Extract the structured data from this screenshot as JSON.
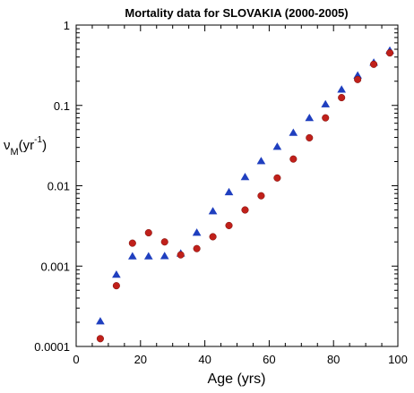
{
  "chart_data": {
    "type": "scatter",
    "title": "Mortality data for SLOVAKIA (2000-2005)",
    "xlabel": "Age (yrs)",
    "ylabel": {
      "symbol": "ν",
      "subscript": "M",
      "unit_open": "(yr",
      "unit_exp": "-1",
      "unit_close": ")"
    },
    "xlim": [
      0,
      100
    ],
    "ylim": [
      0.0001,
      1
    ],
    "yscale": "log",
    "grid": false,
    "xticks": [
      "0",
      "20",
      "40",
      "60",
      "80",
      "100"
    ],
    "xtick_values": [
      0,
      20,
      40,
      60,
      80,
      100
    ],
    "yticks": [
      "0.0001",
      "0.001",
      "0.01",
      "0.1",
      "1"
    ],
    "ytick_values": [
      0.0001,
      0.001,
      0.01,
      0.1,
      1
    ],
    "series": [
      {
        "color": "#1f3fbf",
        "marker": "triangle",
        "x": [
          7.5,
          12.5,
          17.5,
          22.5,
          27.5,
          32.5,
          37.5,
          42.5,
          47.5,
          52.5,
          57.5,
          62.5,
          67.5,
          72.5,
          77.5,
          82.5,
          87.5,
          92.5,
          97.5
        ],
        "values": [
          0.000205,
          0.00078,
          0.00132,
          0.00132,
          0.00133,
          0.00143,
          0.0026,
          0.0048,
          0.0083,
          0.0128,
          0.0202,
          0.0305,
          0.0455,
          0.0695,
          0.103,
          0.157,
          0.235,
          0.34,
          0.48
        ]
      },
      {
        "color": "#c0201a",
        "marker": "circle",
        "x": [
          7.5,
          12.5,
          17.5,
          22.5,
          27.5,
          32.5,
          37.5,
          42.5,
          47.5,
          52.5,
          57.5,
          62.5,
          67.5,
          72.5,
          77.5,
          82.5,
          87.5,
          92.5,
          97.5
        ],
        "values": [
          0.000125,
          0.00057,
          0.00193,
          0.0026,
          0.002,
          0.00138,
          0.00165,
          0.00232,
          0.0032,
          0.005,
          0.0075,
          0.0125,
          0.0215,
          0.0395,
          0.07,
          0.125,
          0.21,
          0.325,
          0.45
        ]
      }
    ]
  }
}
